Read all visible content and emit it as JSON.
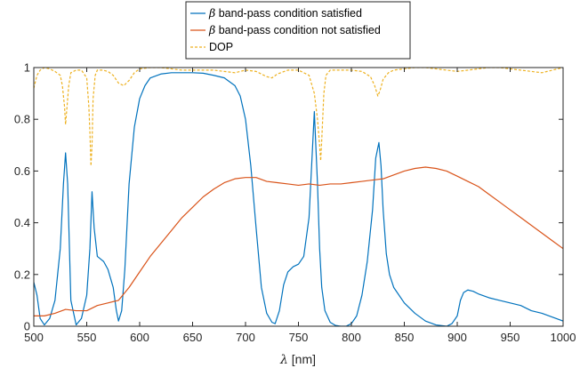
{
  "chart_data": {
    "type": "line",
    "xlabel_symbol": "λ",
    "xlabel_unit": "[nm]",
    "ylabel": "",
    "title": "",
    "xlim": [
      500,
      1000
    ],
    "ylim": [
      0,
      1
    ],
    "xticks": [
      500,
      550,
      600,
      650,
      700,
      750,
      800,
      850,
      900,
      950,
      1000
    ],
    "yticks": [
      0,
      0.2,
      0.4,
      0.6,
      0.8,
      1
    ],
    "ytick_labels": [
      "0",
      "0.2",
      "0.4",
      "0.6",
      "0.8",
      "1"
    ],
    "grid": false,
    "legend_position": "top-center",
    "series": [
      {
        "name_symbol": "β",
        "name": "band-pass condition satisfied",
        "color": "#0072BD",
        "style": "solid",
        "x": [
          500,
          503,
          506,
          510,
          515,
          520,
          525,
          528,
          530,
          532,
          535,
          540,
          545,
          550,
          553,
          555,
          557,
          560,
          563,
          566,
          570,
          575,
          578,
          580,
          583,
          586,
          590,
          595,
          600,
          605,
          610,
          620,
          630,
          640,
          650,
          660,
          670,
          680,
          690,
          695,
          700,
          705,
          710,
          715,
          720,
          725,
          728,
          732,
          736,
          740,
          745,
          750,
          755,
          760,
          765,
          768,
          770,
          772,
          775,
          780,
          785,
          790,
          795,
          800,
          805,
          810,
          815,
          820,
          823,
          826,
          828,
          830,
          833,
          836,
          840,
          850,
          860,
          870,
          880,
          890,
          895,
          900,
          903,
          906,
          910,
          915,
          920,
          930,
          940,
          950,
          960,
          970,
          980,
          990,
          1000
        ],
        "y": [
          0.17,
          0.12,
          0.03,
          0.005,
          0.03,
          0.1,
          0.3,
          0.55,
          0.67,
          0.55,
          0.1,
          0.005,
          0.03,
          0.12,
          0.3,
          0.52,
          0.38,
          0.27,
          0.26,
          0.25,
          0.22,
          0.15,
          0.06,
          0.02,
          0.06,
          0.22,
          0.55,
          0.77,
          0.88,
          0.93,
          0.96,
          0.975,
          0.98,
          0.98,
          0.98,
          0.978,
          0.97,
          0.96,
          0.93,
          0.89,
          0.8,
          0.62,
          0.38,
          0.15,
          0.05,
          0.015,
          0.01,
          0.06,
          0.16,
          0.21,
          0.23,
          0.24,
          0.27,
          0.42,
          0.83,
          0.55,
          0.3,
          0.15,
          0.06,
          0.015,
          0.003,
          0.0,
          0.0,
          0.01,
          0.04,
          0.12,
          0.25,
          0.45,
          0.65,
          0.71,
          0.62,
          0.45,
          0.28,
          0.2,
          0.15,
          0.09,
          0.05,
          0.02,
          0.005,
          0.0,
          0.01,
          0.04,
          0.1,
          0.13,
          0.14,
          0.135,
          0.125,
          0.11,
          0.1,
          0.09,
          0.08,
          0.06,
          0.05,
          0.035,
          0.02
        ]
      },
      {
        "name_symbol": "β",
        "name": "band-pass condition not satisfied",
        "color": "#D95319",
        "style": "solid",
        "x": [
          500,
          510,
          520,
          530,
          540,
          550,
          560,
          570,
          580,
          590,
          600,
          610,
          620,
          630,
          640,
          650,
          660,
          670,
          680,
          690,
          700,
          710,
          720,
          730,
          740,
          750,
          760,
          770,
          780,
          790,
          800,
          810,
          820,
          830,
          840,
          850,
          860,
          870,
          880,
          890,
          900,
          910,
          920,
          930,
          940,
          950,
          960,
          970,
          980,
          990,
          1000
        ],
        "y": [
          0.04,
          0.04,
          0.05,
          0.065,
          0.06,
          0.06,
          0.08,
          0.09,
          0.1,
          0.15,
          0.21,
          0.27,
          0.32,
          0.37,
          0.42,
          0.46,
          0.5,
          0.53,
          0.555,
          0.57,
          0.575,
          0.575,
          0.56,
          0.555,
          0.55,
          0.545,
          0.55,
          0.545,
          0.55,
          0.55,
          0.555,
          0.56,
          0.565,
          0.57,
          0.585,
          0.6,
          0.61,
          0.615,
          0.61,
          0.6,
          0.58,
          0.56,
          0.54,
          0.51,
          0.48,
          0.45,
          0.42,
          0.39,
          0.36,
          0.33,
          0.3
        ]
      },
      {
        "name": "DOP",
        "color": "#EDB120",
        "style": "dashed",
        "x": [
          500,
          503,
          506,
          510,
          515,
          520,
          525,
          527,
          529,
          530,
          531,
          533,
          535,
          540,
          545,
          550,
          552,
          553,
          554,
          555,
          556,
          558,
          560,
          565,
          570,
          575,
          580,
          585,
          590,
          595,
          600,
          610,
          620,
          630,
          640,
          650,
          660,
          670,
          680,
          690,
          700,
          710,
          720,
          725,
          730,
          740,
          750,
          760,
          765,
          768,
          770,
          771,
          772,
          774,
          776,
          780,
          790,
          800,
          810,
          818,
          822,
          825,
          827,
          830,
          835,
          840,
          850,
          860,
          870,
          880,
          890,
          900,
          910,
          920,
          930,
          940,
          950,
          960,
          970,
          980,
          990,
          1000
        ],
        "y": [
          0.92,
          0.97,
          0.99,
          1.0,
          0.995,
          0.985,
          0.97,
          0.93,
          0.85,
          0.78,
          0.83,
          0.93,
          0.98,
          0.99,
          0.99,
          0.96,
          0.85,
          0.75,
          0.62,
          0.7,
          0.88,
          0.97,
          0.99,
          0.99,
          0.985,
          0.97,
          0.94,
          0.93,
          0.95,
          0.98,
          0.995,
          1.0,
          1.0,
          0.995,
          0.99,
          0.99,
          0.99,
          0.99,
          0.985,
          0.98,
          0.99,
          0.985,
          0.965,
          0.96,
          0.975,
          0.99,
          0.99,
          0.97,
          0.9,
          0.8,
          0.7,
          0.64,
          0.72,
          0.9,
          0.97,
          0.99,
          0.99,
          0.99,
          0.985,
          0.965,
          0.93,
          0.89,
          0.91,
          0.955,
          0.98,
          0.99,
          0.995,
          1.0,
          1.0,
          0.995,
          0.99,
          0.985,
          0.99,
          0.995,
          1.0,
          1.0,
          0.995,
          0.99,
          0.985,
          0.98,
          0.99,
          1.0
        ]
      }
    ]
  }
}
